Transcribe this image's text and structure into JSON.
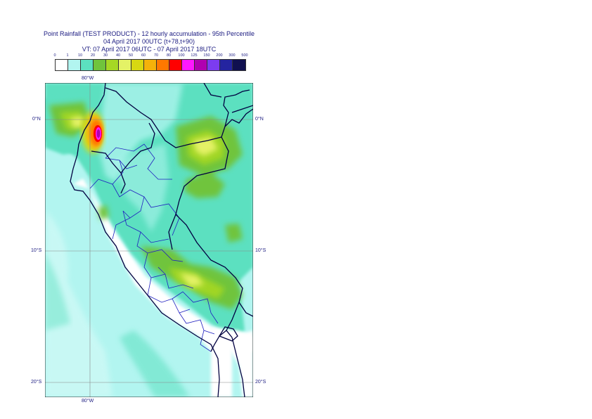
{
  "header": {
    "line1": "Point Rainfall (TEST PRODUCT) - 12 hourly accumulation - 95th Percentile",
    "line2": "04 April 2017 00UTC (t+78,t+90)",
    "line3": "VT: 07 April 2017 06UTC - 07 April 2017 18UTC"
  },
  "legend": {
    "labels": [
      "0",
      "1",
      "10",
      "20",
      "30",
      "40",
      "50",
      "60",
      "70",
      "80",
      "100",
      "125",
      "150",
      "200",
      "300",
      "500"
    ],
    "colors": [
      "#ffffff",
      "#b2f5f0",
      "#5ce0c0",
      "#70c43c",
      "#a6d824",
      "#e4f266",
      "#d8d812",
      "#f5b20a",
      "#ff7800",
      "#ff0000",
      "#ff18ff",
      "#b000b0",
      "#7c3cf0",
      "#2424a0",
      "#101050"
    ]
  },
  "axes": {
    "lon_top": "80°W",
    "lon_bottom": "80°W",
    "lat": [
      "0°N",
      "10°S",
      "20°S"
    ]
  },
  "colors": {
    "sea_base": "#b2f5f0",
    "land_base": "#5ce0c0",
    "border": "#000040",
    "provinces": "#2020c0",
    "grid": "#666666"
  }
}
